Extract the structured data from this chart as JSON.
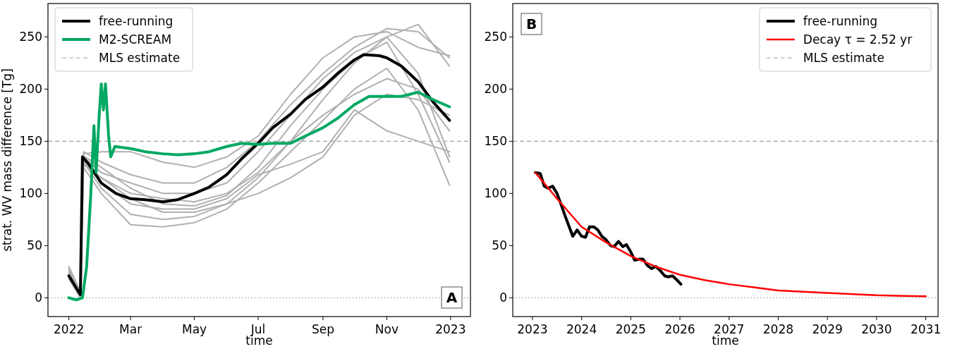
{
  "chart_data": [
    {
      "type": "line",
      "xlabel": "time",
      "ylabel": "strat. WV mass difference [Tg]",
      "xlim": [
        "2021-12-12",
        "2023-01-20"
      ],
      "ylim": [
        -18,
        282
      ],
      "xticks": [
        {
          "value": "2022-01-01",
          "label": "2022"
        },
        {
          "value": "2022-03-01",
          "label": "Mar"
        },
        {
          "value": "2022-05-01",
          "label": "May"
        },
        {
          "value": "2022-07-01",
          "label": "Jul"
        },
        {
          "value": "2022-09-01",
          "label": "Sep"
        },
        {
          "value": "2022-11-01",
          "label": "Nov"
        },
        {
          "value": "2023-01-01",
          "label": "2023"
        }
      ],
      "yticks": [
        0,
        50,
        100,
        150,
        200,
        250
      ],
      "grid": false,
      "legend": "top left",
      "line_style": "solid",
      "x": [
        "2022-01-01",
        "2022-01-12",
        "2022-01-15",
        "2022-02-01",
        "2022-03-01",
        "2022-04-01",
        "2022-05-01",
        "2022-06-01",
        "2022-07-01",
        "2022-08-01",
        "2022-09-01",
        "2022-10-01",
        "2022-11-01",
        "2022-12-01",
        "2022-12-31"
      ],
      "series": [
        {
          "color": "#b0b0b0",
          "values": [
            28,
            5,
            128,
            115,
            100,
            95,
            92,
            100,
            120,
            150,
            175,
            195,
            210,
            200,
            160
          ]
        },
        {
          "color": "#b0b0b0",
          "values": [
            25,
            3,
            140,
            130,
            118,
            110,
            110,
            125,
            150,
            185,
            215,
            240,
            258,
            255,
            230
          ]
        },
        {
          "color": "#b0b0b0",
          "values": [
            20,
            2,
            130,
            105,
            80,
            75,
            78,
            90,
            115,
            150,
            190,
            225,
            250,
            262,
            222
          ]
        },
        {
          "color": "#b0b0b0",
          "values": [
            30,
            6,
            135,
            120,
            110,
            100,
            100,
            110,
            140,
            175,
            210,
            235,
            250,
            215,
            135
          ]
        },
        {
          "color": "#b0b0b0",
          "values": [
            22,
            4,
            125,
            100,
            70,
            68,
            72,
            85,
            110,
            140,
            170,
            200,
            220,
            180,
            108
          ]
        },
        {
          "color": "#b0b0b0",
          "values": [
            18,
            0,
            138,
            140,
            140,
            130,
            125,
            135,
            155,
            195,
            230,
            250,
            255,
            240,
            232
          ]
        },
        {
          "color": "#b0b0b0",
          "values": [
            26,
            3,
            132,
            110,
            90,
            85,
            85,
            95,
            118,
            128,
            140,
            180,
            160,
            150,
            140
          ]
        },
        {
          "color": "#b0b0b0",
          "values": [
            24,
            2,
            128,
            115,
            95,
            82,
            82,
            90,
            100,
            115,
            135,
            175,
            195,
            190,
            175
          ]
        },
        {
          "color": "#b0b0b0",
          "values": [
            20,
            1,
            136,
            125,
            105,
            90,
            88,
            98,
            125,
            165,
            200,
            228,
            245,
            195,
            130
          ]
        },
        {
          "name": "free-running",
          "color": "#000000",
          "x": [
            "2022-01-01",
            "2022-01-12",
            "2022-01-14",
            "2022-01-20",
            "2022-02-01",
            "2022-02-15",
            "2022-03-01",
            "2022-03-15",
            "2022-04-01",
            "2022-04-15",
            "2022-05-01",
            "2022-05-15",
            "2022-06-01",
            "2022-06-15",
            "2022-07-01",
            "2022-07-15",
            "2022-08-01",
            "2022-08-15",
            "2022-09-01",
            "2022-09-15",
            "2022-10-01",
            "2022-10-10",
            "2022-10-25",
            "2022-11-01",
            "2022-11-15",
            "2022-12-01",
            "2022-12-15",
            "2022-12-31"
          ],
          "values": [
            21,
            3,
            135,
            128,
            110,
            100,
            95,
            94,
            92,
            94,
            100,
            106,
            118,
            133,
            148,
            163,
            176,
            190,
            202,
            215,
            228,
            233,
            232,
            230,
            222,
            207,
            188,
            170
          ]
        },
        {
          "name": "M2-SCREAM",
          "color": "#00a862",
          "x": [
            "2022-01-01",
            "2022-01-08",
            "2022-01-14",
            "2022-01-18",
            "2022-01-22",
            "2022-01-25",
            "2022-01-27",
            "2022-01-30",
            "2022-02-01",
            "2022-02-03",
            "2022-02-05",
            "2022-02-08",
            "2022-02-10",
            "2022-02-14",
            "2022-03-01",
            "2022-03-15",
            "2022-04-01",
            "2022-04-15",
            "2022-05-01",
            "2022-05-15",
            "2022-06-01",
            "2022-06-15",
            "2022-07-01",
            "2022-07-15",
            "2022-08-01",
            "2022-08-15",
            "2022-09-01",
            "2022-09-15",
            "2022-10-01",
            "2022-10-15",
            "2022-11-01",
            "2022-11-15",
            "2022-12-01",
            "2022-12-15",
            "2022-12-31"
          ],
          "values": [
            0,
            -2,
            0,
            30,
            100,
            165,
            120,
            175,
            205,
            180,
            205,
            155,
            135,
            145,
            143,
            140,
            138,
            137,
            138,
            140,
            145,
            148,
            147,
            148,
            148,
            155,
            163,
            172,
            185,
            193,
            193,
            193,
            197,
            190,
            183
          ]
        }
      ],
      "ref_lines": [
        {
          "axis": "y",
          "value": 150,
          "label": "MLS estimate",
          "color": "#a0a0a0",
          "line_style": "dashed"
        },
        {
          "axis": "y",
          "value": 0,
          "color": "#a0a0a0",
          "line_style": "dotted"
        }
      ],
      "annotations": [
        "A"
      ]
    },
    {
      "type": "line",
      "xlabel": "time",
      "xlim": [
        2022.6,
        2031.25
      ],
      "ylim": [
        -18,
        282
      ],
      "xticks": [
        2023,
        2024,
        2025,
        2026,
        2027,
        2028,
        2029,
        2030,
        2031
      ],
      "yticks": [
        0,
        50,
        100,
        150,
        200,
        250
      ],
      "grid": false,
      "legend": "top right",
      "line_style": "solid",
      "series": [
        {
          "name": "free-running",
          "color": "#000000",
          "x": [
            2023.06,
            2023.16,
            2023.24,
            2023.32,
            2023.41,
            2023.5,
            2023.57,
            2023.66,
            2023.82,
            2023.91,
            2024.0,
            2024.08,
            2024.16,
            2024.25,
            2024.33,
            2024.41,
            2024.49,
            2024.59,
            2024.66,
            2024.75,
            2024.84,
            2024.91,
            2025.0,
            2025.08,
            2025.17,
            2025.25,
            2025.34,
            2025.42,
            2025.51,
            2025.6,
            2025.69,
            2025.76,
            2025.85,
            2025.94,
            2026.02
          ],
          "values": [
            120,
            119,
            107,
            105,
            107,
            100,
            91,
            79,
            59,
            65,
            59,
            58,
            68,
            68,
            65,
            59,
            56,
            50,
            49,
            54,
            49,
            51,
            44,
            36,
            37,
            37,
            31,
            28,
            30,
            26,
            21,
            20,
            21,
            17,
            13
          ]
        },
        {
          "name": "Decay τ = 2.52 yr",
          "color": "#ff0000",
          "x": [
            2023.06,
            2023.5,
            2024,
            2024.5,
            2025,
            2025.5,
            2026,
            2026.5,
            2027,
            2027.5,
            2028,
            2029,
            2030,
            2031
          ],
          "values": [
            120,
            95,
            68,
            53,
            40,
            30,
            22,
            17,
            13,
            10,
            7,
            4.6,
            2.4,
            1.4
          ]
        }
      ],
      "ref_lines": [
        {
          "axis": "y",
          "value": 150,
          "label": "MLS estimate",
          "color": "#a0a0a0",
          "line_style": "dashed"
        },
        {
          "axis": "y",
          "value": 0,
          "color": "#a0a0a0",
          "line_style": "dotted"
        }
      ],
      "annotations": [
        "B"
      ]
    }
  ]
}
